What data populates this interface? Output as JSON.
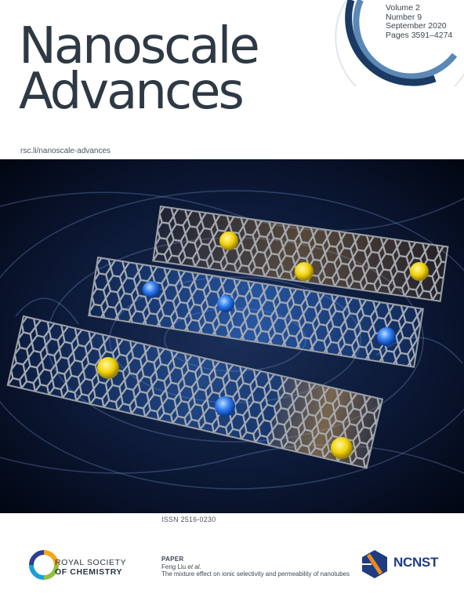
{
  "journal": {
    "title_line1": "Nanoscale",
    "title_line2": "Advances",
    "url": "rsc.li/nanoscale-advances"
  },
  "issue": {
    "volume": "Volume 2",
    "number": "Number 9",
    "date": "September 2020",
    "pages": "Pages 3591–4274"
  },
  "issn": "ISSN 2516-0230",
  "publisher": {
    "line1": "ROYAL SOCIETY",
    "line2": "OF CHEMISTRY"
  },
  "paper": {
    "label": "PAPER",
    "authors": "Feng Liu",
    "et_al": "et al.",
    "title": "The mixture effect on ionic selectivity and permeability of nanotubes"
  },
  "partner": {
    "name": "NCNST"
  },
  "colors": {
    "arc_dark": "#1b3a63",
    "arc_light": "#5b88b5",
    "title_text": "#2e3944",
    "ncnst_blue": "#1f3c82",
    "ncnst_orange": "#f08a1c"
  }
}
